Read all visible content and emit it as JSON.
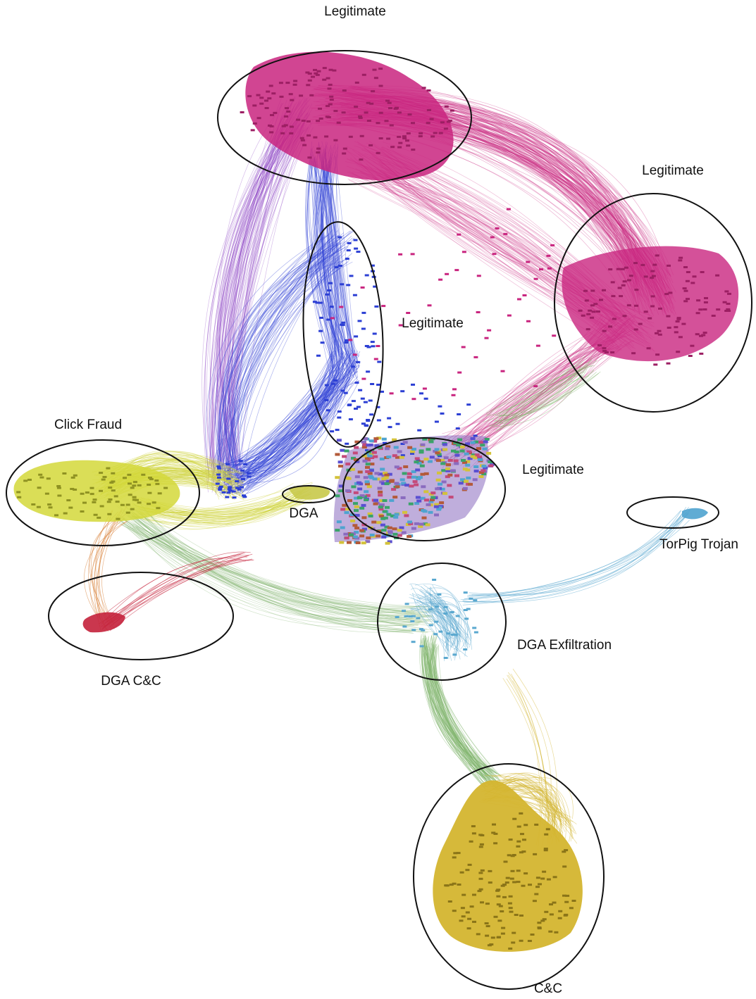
{
  "clusters": [
    {
      "id": "legit-top",
      "label": "Legitimate",
      "color": "#c9257f"
    },
    {
      "id": "legit-right",
      "label": "Legitimate",
      "color": "#c9257f"
    },
    {
      "id": "legit-center",
      "label": "Legitimate",
      "color": "#2c3fd4"
    },
    {
      "id": "legit-mixed",
      "label": "Legitimate",
      "color": "#8a6bbf"
    },
    {
      "id": "click-fraud",
      "label": "Click Fraud",
      "color": "#d3d83a"
    },
    {
      "id": "dga",
      "label": "DGA",
      "color": "#c8c94a"
    },
    {
      "id": "torpig",
      "label": "TorPig Trojan",
      "color": "#4fa3cf"
    },
    {
      "id": "dga-cc",
      "label": "DGA C&C",
      "color": "#c4213b"
    },
    {
      "id": "dga-exfil",
      "label": "DGA Exfiltration",
      "color": "#5aa8cf"
    },
    {
      "id": "cc",
      "label": "C&C",
      "color": "#d4b52f"
    }
  ],
  "edge_colors": {
    "magenta": "#c9257f",
    "blue": "#2c3fd4",
    "purple": "#8a3fc4",
    "yellow": "#cfd23a",
    "green": "#7fb36a",
    "cyan": "#5aa8cf",
    "red": "#c4213b",
    "gold": "#d4b52f",
    "orange": "#d9823a"
  }
}
